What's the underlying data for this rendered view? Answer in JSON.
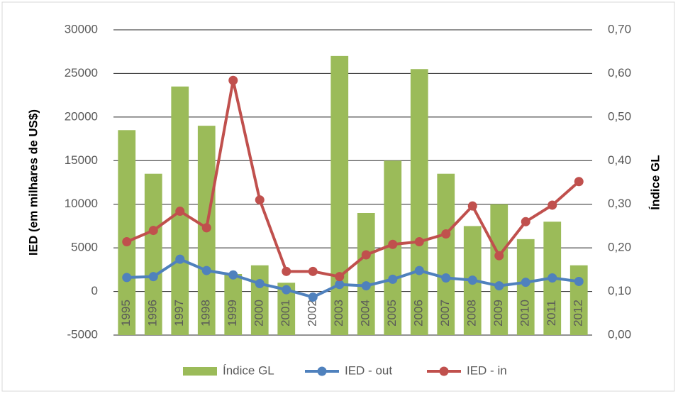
{
  "chart_data": {
    "type": "bar",
    "y_label": "IED (em milhares de US$)",
    "y2_label": "Índice GL",
    "categories": [
      "1995",
      "1996",
      "1997",
      "1998",
      "1999",
      "2000",
      "2001",
      "2002",
      "2003",
      "2004",
      "2005",
      "2006",
      "2007",
      "2008",
      "2009",
      "2010",
      "2011",
      "2012"
    ],
    "series": [
      {
        "name": "Índice GL",
        "type": "bar",
        "axis": "y2",
        "color": "#9bbb59",
        "values": [
          0.47,
          0.37,
          0.57,
          0.48,
          0.14,
          0.16,
          0.12,
          0,
          0.64,
          0.28,
          0.4,
          0.61,
          0.37,
          0.25,
          0.3,
          0.22,
          0.26,
          0.16
        ]
      },
      {
        "name": "IED - out",
        "type": "line",
        "color": "#4f81bd",
        "values": [
          1600,
          1700,
          3700,
          2400,
          1900,
          900,
          200,
          -650,
          800,
          650,
          1400,
          2400,
          1550,
          1300,
          650,
          1050,
          1550,
          1150
        ]
      },
      {
        "name": "IED - in",
        "type": "line",
        "color": "#c0504d",
        "values": [
          5700,
          7000,
          9200,
          7300,
          24200,
          10500,
          2300,
          2300,
          1700,
          4200,
          5400,
          5700,
          6600,
          9800,
          4100,
          8000,
          9900,
          12600
        ]
      }
    ],
    "ylim": [
      -5000,
      30000
    ],
    "yticks": [
      -5000,
      0,
      5000,
      10000,
      15000,
      20000,
      25000,
      30000
    ],
    "y2lim": [
      0,
      0.7
    ],
    "y2ticks": [
      {
        "value": 0,
        "label": "0,00"
      },
      {
        "value": 0.1,
        "label": "0,10"
      },
      {
        "value": 0.2,
        "label": "0,20"
      },
      {
        "value": 0.3,
        "label": "0,30"
      },
      {
        "value": 0.4,
        "label": "0,40"
      },
      {
        "value": 0.5,
        "label": "0,50"
      },
      {
        "value": 0.6,
        "label": "0,60"
      },
      {
        "value": 0.7,
        "label": "0,70"
      }
    ],
    "grid": true,
    "legend": "bottom"
  }
}
